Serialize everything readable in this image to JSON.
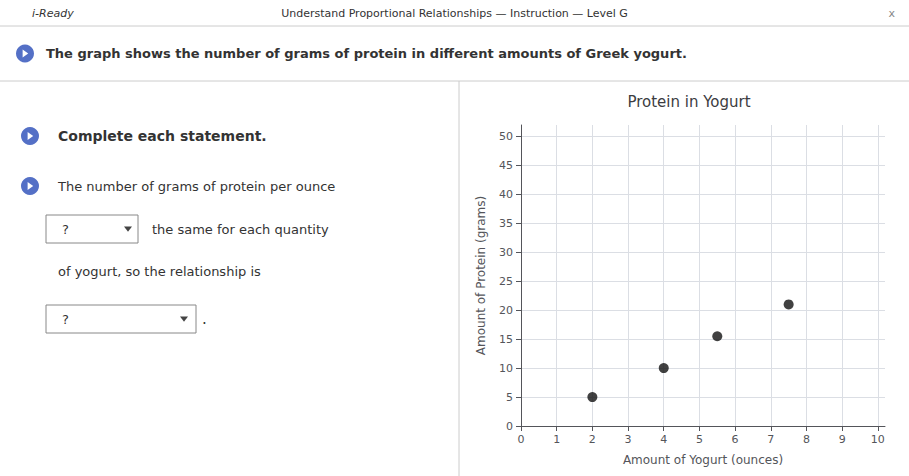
{
  "chart_data": {
    "type": "scatter",
    "title": "Protein in Yogurt",
    "xlabel": "Amount of Yogurt (ounces)",
    "ylabel": "Amount of Protein (grams)",
    "x": [
      2,
      4,
      5.5,
      7.5
    ],
    "values": [
      5,
      10,
      15.5,
      21
    ],
    "color": "#111111",
    "xlim": [
      0,
      10.2
    ],
    "ylim": [
      0,
      52
    ],
    "xticks": [
      0,
      1,
      2,
      3,
      4,
      5,
      6,
      7,
      8,
      9,
      10
    ],
    "yticks": [
      0,
      5,
      10,
      15,
      20,
      25,
      30,
      35,
      40,
      45,
      50
    ],
    "grid": true,
    "annotations": [
      "i-Ready",
      "Understand Proportional Relationships — Instruction — Level G",
      "x",
      "The graph shows the number of grams of protein in different amounts of Greek yogurt.",
      "Complete each statement.",
      "The number of grams of protein per ounce",
      "?",
      "the same for each quantity",
      "of yogurt, so the relationship is",
      "?",
      "."
    ]
  }
}
